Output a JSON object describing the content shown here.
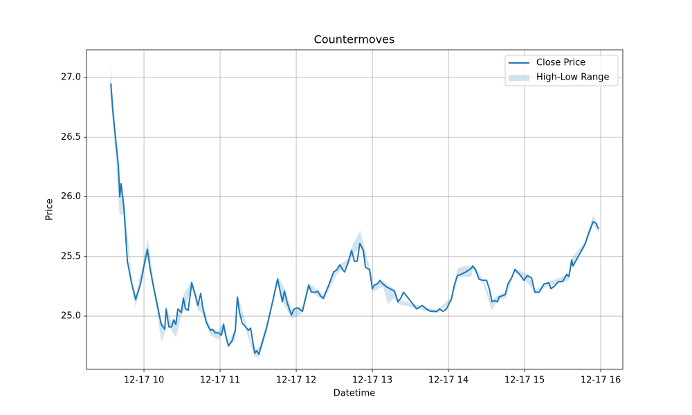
{
  "chart_data": {
    "type": "line",
    "title": "Countermoves",
    "xlabel": "Datetime",
    "ylabel": "Price",
    "xlim": [
      9.245,
      16.29
    ],
    "ylim": [
      24.554,
      27.232
    ],
    "xticks": [
      {
        "value": 10,
        "label": "12-17 10"
      },
      {
        "value": 11,
        "label": "12-17 11"
      },
      {
        "value": 12,
        "label": "12-17 12"
      },
      {
        "value": 13,
        "label": "12-17 13"
      },
      {
        "value": 14,
        "label": "12-17 14"
      },
      {
        "value": 15,
        "label": "12-17 15"
      },
      {
        "value": 16,
        "label": "12-17 16"
      }
    ],
    "yticks": [
      {
        "value": 25,
        "label": "25.0"
      },
      25.5,
      {
        "value": 26,
        "label": "26.0"
      },
      26.5,
      {
        "value": 27,
        "label": "27.0"
      }
    ],
    "grid": true,
    "legend": "upper right",
    "series": [
      {
        "name": "Close Price",
        "color": "#1f77b4",
        "x": [
          9.564,
          9.591,
          9.627,
          9.664,
          9.682,
          9.7,
          9.736,
          9.782,
          9.836,
          9.891,
          9.955,
          10.0,
          10.045,
          10.082,
          10.127,
          10.182,
          10.227,
          10.273,
          10.291,
          10.327,
          10.364,
          10.391,
          10.418,
          10.445,
          10.491,
          10.518,
          10.545,
          10.582,
          10.627,
          10.682,
          10.709,
          10.745,
          10.773,
          10.818,
          10.873,
          10.9,
          10.936,
          10.982,
          11.018,
          11.045,
          11.073,
          11.109,
          11.155,
          11.2,
          11.227,
          11.255,
          11.291,
          11.336,
          11.373,
          11.4,
          11.455,
          11.482,
          11.509,
          11.609,
          11.682,
          11.755,
          11.818,
          11.845,
          11.882,
          11.936,
          11.973,
          12.018,
          12.082,
          12.164,
          12.2,
          12.255,
          12.282,
          12.318,
          12.355,
          12.427,
          12.491,
          12.536,
          12.573,
          12.6,
          12.636,
          12.682,
          12.727,
          12.764,
          12.8,
          12.836,
          12.882,
          12.909,
          12.964,
          13.0,
          13.027,
          13.064,
          13.1,
          13.136,
          13.2,
          13.291,
          13.336,
          13.373,
          13.409,
          13.473,
          13.545,
          13.582,
          13.655,
          13.709,
          13.764,
          13.845,
          13.882,
          13.927,
          13.973,
          14.036,
          14.082,
          14.118,
          14.164,
          14.227,
          14.3,
          14.318,
          14.355,
          14.4,
          14.445,
          14.5,
          14.536,
          14.573,
          14.609,
          14.645,
          14.664,
          14.745,
          14.782,
          14.836,
          14.873,
          14.936,
          14.991,
          15.036,
          15.091,
          15.136,
          15.191,
          15.255,
          15.318,
          15.345,
          15.391,
          15.445,
          15.5,
          15.555,
          15.582,
          15.618,
          15.636,
          15.791,
          15.845,
          15.9,
          15.936,
          15.973
        ],
        "values": [
          26.95,
          26.72,
          26.49,
          26.26,
          26.0,
          26.11,
          25.91,
          25.46,
          25.28,
          25.14,
          25.27,
          25.42,
          25.56,
          25.39,
          25.24,
          25.07,
          24.93,
          24.89,
          25.06,
          24.91,
          24.91,
          24.97,
          24.93,
          25.06,
          25.03,
          25.15,
          25.06,
          25.05,
          25.28,
          25.16,
          25.09,
          25.19,
          25.07,
          24.95,
          24.88,
          24.89,
          24.86,
          24.86,
          24.84,
          24.93,
          24.84,
          24.75,
          24.79,
          24.88,
          25.16,
          25.03,
          24.94,
          24.91,
          24.88,
          24.9,
          24.69,
          24.71,
          24.68,
          24.9,
          25.1,
          25.31,
          25.12,
          25.21,
          25.11,
          25.01,
          25.06,
          25.07,
          25.04,
          25.26,
          25.2,
          25.2,
          25.21,
          25.17,
          25.15,
          25.26,
          25.37,
          25.39,
          25.43,
          25.4,
          25.37,
          25.45,
          25.55,
          25.46,
          25.46,
          25.61,
          25.55,
          25.41,
          25.39,
          25.23,
          25.26,
          25.27,
          25.3,
          25.27,
          25.24,
          25.21,
          25.12,
          25.15,
          25.2,
          25.15,
          25.09,
          25.06,
          25.09,
          25.06,
          25.04,
          25.04,
          25.06,
          25.04,
          25.06,
          25.14,
          25.27,
          25.34,
          25.35,
          25.37,
          25.4,
          25.42,
          25.39,
          25.31,
          25.3,
          25.3,
          25.23,
          25.12,
          25.13,
          25.12,
          25.16,
          25.18,
          25.27,
          25.33,
          25.39,
          25.35,
          25.3,
          25.34,
          25.32,
          25.2,
          25.2,
          25.27,
          25.28,
          25.23,
          25.25,
          25.29,
          25.29,
          25.35,
          25.33,
          25.47,
          25.42,
          25.6,
          25.7,
          25.79,
          25.78,
          25.73
        ]
      },
      {
        "name": "High-Low Range",
        "color": "#1f77b4",
        "alpha": 0.2,
        "x": [
          9.56,
          9.62,
          9.68,
          9.74,
          9.84,
          9.89,
          10.0,
          10.05,
          10.13,
          10.23,
          10.27,
          10.29,
          10.36,
          10.42,
          10.49,
          10.52,
          10.63,
          10.71,
          10.77,
          10.87,
          10.98,
          11.05,
          11.11,
          11.2,
          11.23,
          11.34,
          11.45,
          11.51,
          11.61,
          11.76,
          11.84,
          11.94,
          12.08,
          12.16,
          12.36,
          12.54,
          12.68,
          12.73,
          12.84,
          12.96,
          13.0,
          13.14,
          13.2,
          13.29,
          13.34,
          13.55,
          13.85,
          14.04,
          14.12,
          14.2,
          14.3,
          14.32,
          14.45,
          14.57,
          14.66,
          14.75,
          14.87,
          15.04,
          15.14,
          15.32,
          15.45,
          15.58,
          15.62,
          15.79,
          15.9,
          15.97
        ],
        "low": [
          26.85,
          26.4,
          25.85,
          25.85,
          25.24,
          25.08,
          25.38,
          25.5,
          25.2,
          24.78,
          24.85,
          24.98,
          24.88,
          24.82,
          25.0,
          25.05,
          25.23,
          25.05,
          25.02,
          24.84,
          24.8,
          24.88,
          24.74,
          24.8,
          25.1,
          24.88,
          24.66,
          24.66,
          24.86,
          25.28,
          25.1,
          24.98,
          25.02,
          25.22,
          25.13,
          25.36,
          25.42,
          25.5,
          25.58,
          25.36,
          25.2,
          25.25,
          25.1,
          25.15,
          25.1,
          25.07,
          25.02,
          25.12,
          25.32,
          25.33,
          25.33,
          25.4,
          25.28,
          25.05,
          25.14,
          25.15,
          25.37,
          25.28,
          25.19,
          25.26,
          25.27,
          25.3,
          25.42,
          25.57,
          25.77,
          25.7
        ],
        "high": [
          27.1,
          26.6,
          26.15,
          25.98,
          25.32,
          25.17,
          25.48,
          25.65,
          25.28,
          24.95,
          24.93,
          25.08,
          24.95,
          24.97,
          25.09,
          25.18,
          25.3,
          25.12,
          25.1,
          24.9,
          24.88,
          24.96,
          24.78,
          24.9,
          25.18,
          24.94,
          24.72,
          24.74,
          24.92,
          25.34,
          25.24,
          25.06,
          25.08,
          25.28,
          25.18,
          25.42,
          25.48,
          25.58,
          25.72,
          25.42,
          25.26,
          25.3,
          25.26,
          25.23,
          25.14,
          25.1,
          25.05,
          25.16,
          25.4,
          25.42,
          25.42,
          25.44,
          25.31,
          25.13,
          25.18,
          25.2,
          25.4,
          25.35,
          25.22,
          25.29,
          25.32,
          25.36,
          25.49,
          25.62,
          25.84,
          25.76
        ]
      }
    ]
  }
}
